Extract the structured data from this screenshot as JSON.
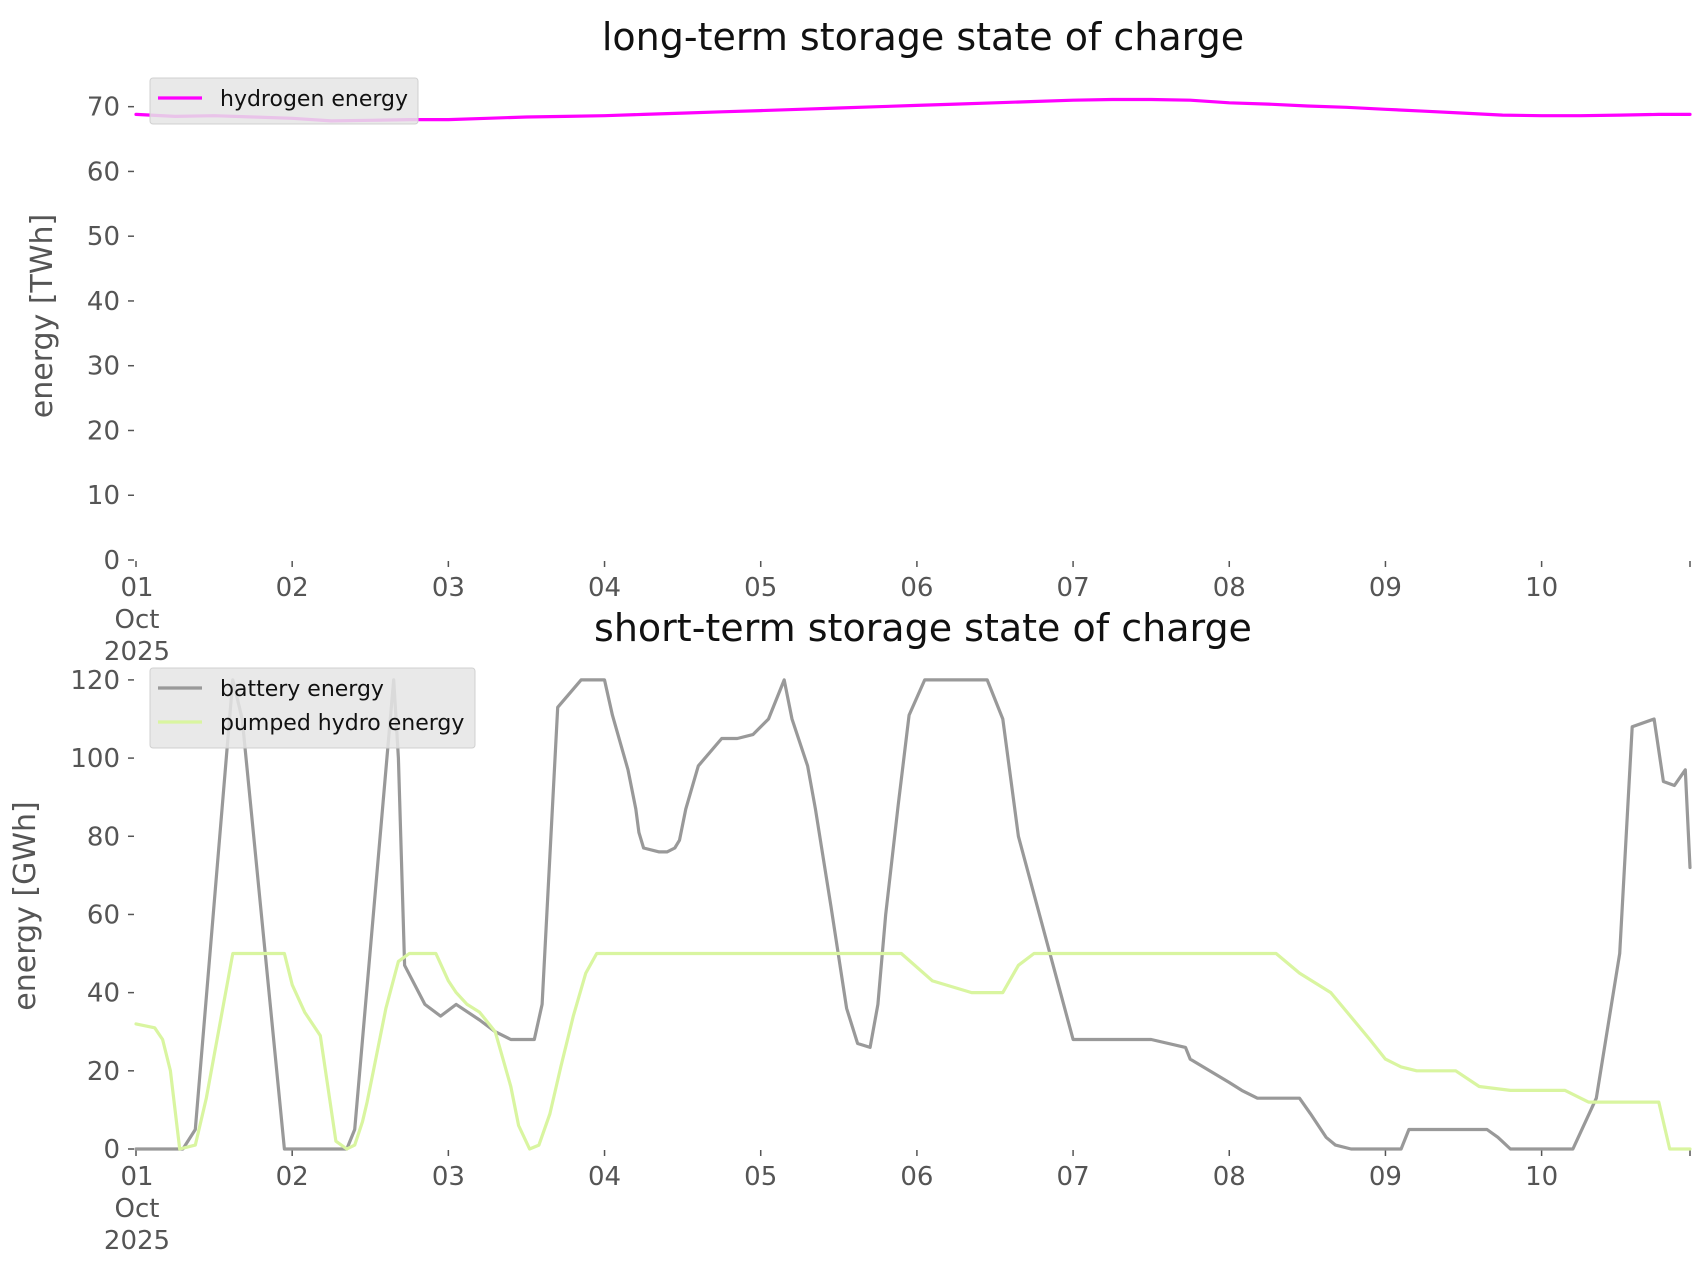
{
  "chart_data": [
    {
      "type": "line",
      "title": "long-term storage state of charge",
      "xlabel": "",
      "ylabel": "energy [TWh]",
      "ylim": [
        0,
        73.5
      ],
      "xlim": [
        0,
        9.95
      ],
      "grid": false,
      "legend": "top-left",
      "x_unit": "days since 01 Oct 2025 00:00",
      "y_ticks": [
        0,
        10,
        20,
        30,
        40,
        50,
        60,
        70
      ],
      "x_ticks": [
        0,
        1,
        2,
        3,
        4,
        5,
        6,
        7,
        8,
        9
      ],
      "x_tick_labels": [
        "01",
        "02",
        "03",
        "04",
        "05",
        "06",
        "07",
        "08",
        "09",
        "10"
      ],
      "x_first_tick_extra": [
        "Oct",
        "2025"
      ],
      "series": [
        {
          "name": "hydrogen energy",
          "color": "#ff00ff",
          "x": [
            0,
            0.25,
            0.5,
            0.75,
            1,
            1.25,
            1.5,
            1.75,
            2,
            2.25,
            2.5,
            2.75,
            3,
            3.25,
            3.5,
            3.75,
            4,
            4.25,
            4.5,
            4.75,
            5,
            5.25,
            5.5,
            5.75,
            6,
            6.25,
            6.5,
            6.75,
            7,
            7.25,
            7.5,
            7.75,
            8,
            8.25,
            8.5,
            8.75,
            9,
            9.25,
            9.5,
            9.75,
            9.95
          ],
          "values": [
            68.8,
            68.5,
            68.6,
            68.4,
            68.2,
            67.8,
            67.9,
            68.0,
            68.0,
            68.2,
            68.4,
            68.5,
            68.6,
            68.8,
            69.0,
            69.2,
            69.4,
            69.6,
            69.8,
            70.0,
            70.2,
            70.4,
            70.6,
            70.8,
            71.0,
            71.1,
            71.1,
            71.0,
            70.6,
            70.4,
            70.1,
            69.9,
            69.6,
            69.3,
            69.0,
            68.7,
            68.6,
            68.6,
            68.7,
            68.8,
            68.8
          ]
        }
      ]
    },
    {
      "type": "line",
      "title": "short-term storage state of charge",
      "xlabel": "",
      "ylabel": "energy [GWh]",
      "ylim": [
        0,
        121
      ],
      "xlim": [
        0,
        9.95
      ],
      "grid": false,
      "legend": "top-left",
      "x_unit": "days since 01 Oct 2025 00:00",
      "y_ticks": [
        0,
        20,
        40,
        60,
        80,
        100,
        120
      ],
      "x_ticks": [
        0,
        1,
        2,
        3,
        4,
        5,
        6,
        7,
        8,
        9
      ],
      "x_tick_labels": [
        "01",
        "02",
        "03",
        "04",
        "05",
        "06",
        "07",
        "08",
        "09",
        "10"
      ],
      "x_first_tick_extra": [
        "Oct",
        "2025"
      ],
      "series": [
        {
          "name": "battery energy",
          "color": "#999999",
          "x": [
            0,
            0.3,
            0.38,
            0.62,
            0.68,
            0.95,
            1.0,
            1.3,
            1.35,
            1.4,
            1.65,
            1.68,
            1.72,
            1.85,
            1.95,
            2.05,
            2.2,
            2.3,
            2.35,
            2.4,
            2.5,
            2.55,
            2.6,
            2.65,
            2.7,
            2.85,
            2.92,
            3.0,
            3.05,
            3.15,
            3.2,
            3.22,
            3.25,
            3.35,
            3.4,
            3.45,
            3.48,
            3.52,
            3.6,
            3.75,
            3.85,
            3.95,
            4.05,
            4.15,
            4.2,
            4.3,
            4.35,
            4.45,
            4.55,
            4.62,
            4.7,
            4.75,
            4.8,
            4.88,
            4.95,
            5.05,
            5.15,
            5.25,
            5.3,
            5.35,
            5.45,
            5.55,
            5.65,
            6.0,
            6.15,
            6.5,
            6.72,
            6.75,
            7.0,
            7.08,
            7.18,
            7.25,
            7.3,
            7.38,
            7.45,
            7.52,
            7.62,
            7.68,
            7.78,
            7.85,
            7.93,
            8.02,
            8.1,
            8.15,
            8.5,
            8.65,
            8.72,
            8.8,
            8.9,
            9.0,
            9.2,
            9.35,
            9.5,
            9.58,
            9.72,
            9.78,
            9.85,
            9.92,
            9.95
          ],
          "values": [
            0,
            0,
            5,
            120,
            110,
            0,
            0,
            0,
            0,
            5,
            120,
            100,
            47,
            37,
            34,
            37,
            33,
            30,
            29,
            28,
            28,
            28,
            37,
            75,
            113,
            120,
            120,
            120,
            111,
            97,
            87,
            81,
            77,
            76,
            76,
            77,
            79,
            87,
            98,
            105,
            105,
            106,
            110,
            120,
            110,
            98,
            87,
            62,
            36,
            27,
            26,
            37,
            60,
            88,
            111,
            120,
            120,
            120,
            120,
            120,
            120,
            110,
            80,
            28,
            28,
            28,
            26,
            23,
            17,
            15,
            13,
            13,
            13,
            13,
            13,
            9,
            3,
            1,
            0,
            0,
            0,
            0,
            0,
            5,
            5,
            5,
            3,
            0,
            0,
            0,
            0,
            13,
            50,
            108,
            110,
            94,
            93,
            97,
            72
          ],
          "note": "truncated"
        },
        {
          "name": "pumped hydro energy",
          "color": "#d9f5a0",
          "x": [
            0,
            0.12,
            0.17,
            0.22,
            0.28,
            0.38,
            0.45,
            0.62,
            0.8,
            0.95,
            1.0,
            1.08,
            1.18,
            1.28,
            1.35,
            1.4,
            1.45,
            1.48,
            1.52,
            1.6,
            1.68,
            1.75,
            1.82,
            1.92,
            2.0,
            2.05,
            2.12,
            2.2,
            2.3,
            2.35,
            2.4,
            2.45,
            2.52,
            2.58,
            2.65,
            2.72,
            2.8,
            2.88,
            2.95,
            3.05,
            3.1,
            3.2,
            3.25,
            3.3,
            3.4,
            3.48,
            3.55,
            3.62,
            3.7,
            3.95,
            4.3,
            4.9,
            5.1,
            5.35,
            5.55,
            5.65,
            5.75,
            6.2,
            6.5,
            6.72,
            6.82,
            6.92,
            7.02,
            7.1,
            7.15,
            7.2,
            7.25,
            7.3,
            7.45,
            7.65,
            7.9,
            8.0,
            8.1,
            8.2,
            8.3,
            8.45,
            8.6,
            8.8,
            8.9,
            9.1,
            9.15,
            9.3,
            9.4,
            9.5,
            9.58,
            9.65,
            9.75,
            9.82,
            9.9,
            9.95
          ],
          "values": [
            32,
            31,
            28,
            20,
            0,
            1,
            13,
            50,
            50,
            50,
            42,
            35,
            29,
            2,
            0,
            1,
            7,
            12,
            20,
            36,
            48,
            50,
            50,
            50,
            43,
            40,
            37,
            35,
            30,
            23,
            16,
            6,
            0,
            1,
            9,
            21,
            34,
            45,
            50,
            50,
            50,
            50,
            50,
            50,
            50,
            50,
            50,
            50,
            50,
            50,
            50,
            50,
            43,
            40,
            40,
            47,
            50,
            50,
            50,
            50,
            50,
            50,
            50,
            50,
            50,
            50,
            50,
            50,
            45,
            40,
            28,
            23,
            21,
            20,
            20,
            20,
            16,
            15,
            15,
            15,
            15,
            12,
            12,
            12,
            12,
            12,
            12,
            0,
            0,
            0
          ],
          "note": "truncated"
        }
      ]
    }
  ]
}
